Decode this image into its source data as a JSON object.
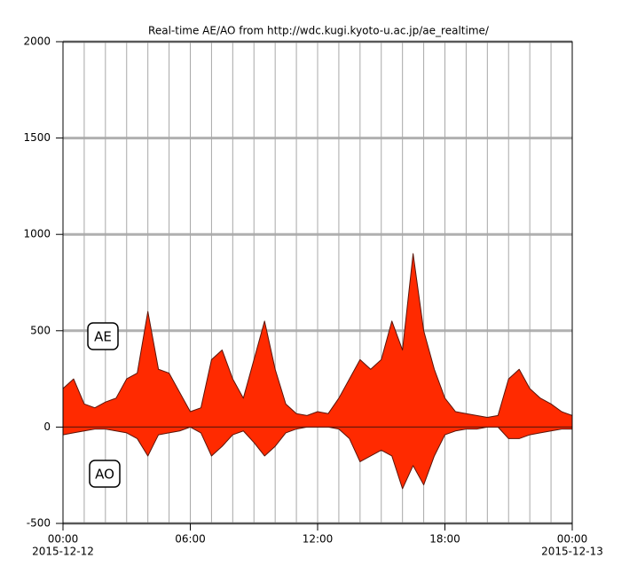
{
  "chart_data": {
    "type": "area",
    "title": "Real-time AE/AO from http://wdc.kugi.kyoto-u.ac.jp/ae_realtime/",
    "x": [
      0,
      0.5,
      1,
      1.5,
      2,
      2.5,
      3,
      3.5,
      4,
      4.5,
      5,
      5.5,
      6,
      6.5,
      7,
      7.5,
      8,
      8.5,
      9,
      9.5,
      10,
      10.5,
      11,
      11.5,
      12,
      12.5,
      13,
      13.5,
      14,
      14.5,
      15,
      15.5,
      16,
      16.5,
      17,
      17.5,
      18,
      18.5,
      19,
      19.5,
      20,
      20.5,
      21,
      21.5,
      22,
      22.5,
      23,
      23.5,
      24
    ],
    "series": [
      {
        "color": "#ff2a00",
        "values": [
          200,
          250,
          120,
          100,
          130,
          150,
          250,
          280,
          600,
          300,
          280,
          180,
          80,
          100,
          350,
          400,
          250,
          150,
          350,
          550,
          300,
          120,
          70,
          60,
          80,
          70,
          150,
          250,
          350,
          300,
          350,
          550,
          400,
          900,
          500,
          300,
          150,
          80,
          70,
          60,
          50,
          60,
          250,
          300,
          200,
          150,
          120,
          80,
          60
        ]
      },
      {
        "color": "#ff2a00",
        "values": [
          -40,
          -30,
          -20,
          -10,
          -10,
          -20,
          -30,
          -60,
          -150,
          -40,
          -30,
          -20,
          0,
          -30,
          -150,
          -100,
          -40,
          -20,
          -80,
          -150,
          -100,
          -30,
          -10,
          0,
          0,
          0,
          -10,
          -60,
          -180,
          -150,
          -120,
          -150,
          -320,
          -200,
          -300,
          -150,
          -40,
          -20,
          -10,
          -10,
          0,
          0,
          -60,
          -60,
          -40,
          -30,
          -20,
          -10,
          -10
        ]
      }
    ],
    "xlim": [
      0,
      24
    ],
    "xticks": [
      {
        "value": 0,
        "label": "00:00"
      },
      {
        "value": 6,
        "label": "06:00"
      },
      {
        "value": 12,
        "label": "12:00"
      },
      {
        "value": 18,
        "label": "18:00"
      },
      {
        "value": 24,
        "label": "00:00"
      }
    ],
    "date_labels": [
      {
        "value": 0,
        "label": "2015-12-12"
      },
      {
        "value": 24,
        "label": "2015-12-13"
      }
    ],
    "ylim": [
      -500,
      2000
    ],
    "yticks": [
      -500,
      0,
      500,
      1000,
      1500,
      2000
    ],
    "grid": true,
    "annotations": [
      "AE",
      "AO"
    ]
  }
}
